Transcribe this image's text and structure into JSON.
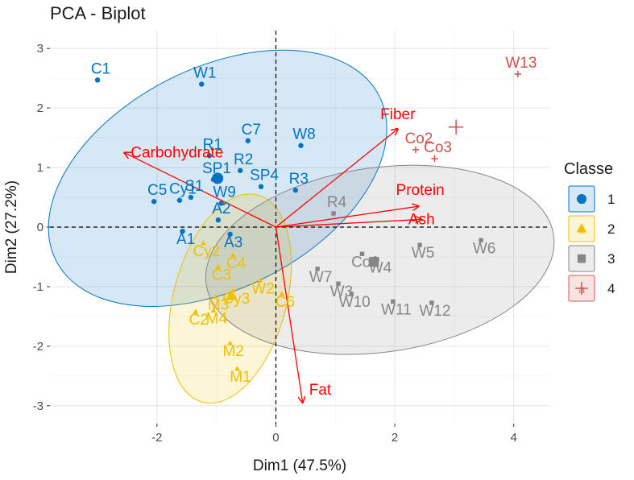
{
  "colors": {
    "1": "#0073c2",
    "2": "#efc000",
    "3": "#868686",
    "4": "#cd534c",
    "var": "#ff0000"
  },
  "chart_data": {
    "type": "scatter",
    "title": "PCA - Biplot",
    "xlabel": "Dim1 (47.5%)",
    "ylabel": "Dim2 (27.2%)",
    "xlim": [
      -3.8,
      4.6
    ],
    "ylim": [
      -3.3,
      3.3
    ],
    "xticks": [
      -2,
      0,
      2,
      4
    ],
    "yticks": [
      -3,
      -2,
      -1,
      0,
      1,
      2,
      3
    ],
    "legend": {
      "title": "Classe",
      "entries": [
        {
          "classe": "1",
          "label": "1"
        },
        {
          "classe": "2",
          "label": "2"
        },
        {
          "classe": "3",
          "label": "3"
        },
        {
          "classe": "4",
          "label": "4"
        }
      ]
    },
    "points": [
      {
        "name": "W1",
        "classe": "1",
        "x": -1.25,
        "y": 2.4
      },
      {
        "name": "C1",
        "classe": "1",
        "x": -3.0,
        "y": 2.47
      },
      {
        "name": "C7",
        "classe": "1",
        "x": -0.47,
        "y": 1.45
      },
      {
        "name": "R1",
        "classe": "1",
        "x": -1.12,
        "y": 1.2
      },
      {
        "name": "W8",
        "classe": "1",
        "x": 0.42,
        "y": 1.37
      },
      {
        "name": "R2",
        "classe": "1",
        "x": -0.6,
        "y": 0.95
      },
      {
        "name": "SP1",
        "classe": "1",
        "x": -1.05,
        "y": 0.8
      },
      {
        "name": "R3",
        "classe": "1",
        "x": 0.33,
        "y": 0.62
      },
      {
        "name": "Cy1",
        "classe": "1",
        "x": -1.62,
        "y": 0.45
      },
      {
        "name": "S1",
        "classe": "1",
        "x": -1.43,
        "y": 0.5
      },
      {
        "name": "W9",
        "classe": "1",
        "x": -0.92,
        "y": 0.4
      },
      {
        "name": "SP4",
        "classe": "1",
        "x": -0.25,
        "y": 0.68
      },
      {
        "name": "C5",
        "classe": "1",
        "x": -2.05,
        "y": 0.43
      },
      {
        "name": "A1",
        "classe": "1",
        "x": -1.57,
        "y": -0.07
      },
      {
        "name": "A2",
        "classe": "1",
        "x": -0.97,
        "y": 0.12
      },
      {
        "name": "A3",
        "classe": "1",
        "x": -0.77,
        "y": -0.12
      },
      {
        "name": "Cy2",
        "classe": "2",
        "x": -1.22,
        "y": -0.27
      },
      {
        "name": "C4",
        "classe": "2",
        "x": -0.72,
        "y": -0.47
      },
      {
        "name": "C3",
        "classe": "2",
        "x": -0.97,
        "y": -0.67
      },
      {
        "name": "W2",
        "classe": "2",
        "x": -0.27,
        "y": -0.9
      },
      {
        "name": "M3",
        "classe": "2",
        "x": -1.02,
        "y": -1.17
      },
      {
        "name": "Cy3",
        "classe": "2",
        "x": -0.72,
        "y": -1.07
      },
      {
        "name": "C2",
        "classe": "2",
        "x": -1.35,
        "y": -1.42
      },
      {
        "name": "M4",
        "classe": "2",
        "x": -1.05,
        "y": -1.4
      },
      {
        "name": "C6",
        "classe": "2",
        "x": 0.1,
        "y": -1.12
      },
      {
        "name": "M2",
        "classe": "2",
        "x": -0.77,
        "y": -1.95
      },
      {
        "name": "M1",
        "classe": "2",
        "x": -0.65,
        "y": -2.38
      },
      {
        "name": "R4",
        "classe": "3",
        "x": 0.97,
        "y": 0.23
      },
      {
        "name": "Co1",
        "classe": "3",
        "x": 1.45,
        "y": -0.45
      },
      {
        "name": "W7",
        "classe": "3",
        "x": 0.7,
        "y": -0.7
      },
      {
        "name": "W4",
        "classe": "3",
        "x": 1.7,
        "y": -0.55
      },
      {
        "name": "W3",
        "classe": "3",
        "x": 1.05,
        "y": -0.95
      },
      {
        "name": "W6",
        "classe": "3",
        "x": 3.45,
        "y": -0.22
      },
      {
        "name": "W5",
        "classe": "3",
        "x": 2.42,
        "y": -0.3
      },
      {
        "name": "W10",
        "classe": "3",
        "x": 1.27,
        "y": -1.12
      },
      {
        "name": "W12",
        "classe": "3",
        "x": 2.62,
        "y": -1.27
      },
      {
        "name": "W11",
        "classe": "3",
        "x": 1.97,
        "y": -1.25
      },
      {
        "name": "W13",
        "classe": "4",
        "x": 4.07,
        "y": 2.57
      },
      {
        "name": "Co2",
        "classe": "4",
        "x": 2.35,
        "y": 1.3
      },
      {
        "name": "Co3",
        "classe": "4",
        "x": 2.67,
        "y": 1.15
      }
    ],
    "centroids": [
      {
        "classe": "1",
        "x": -0.98,
        "y": 0.82
      },
      {
        "classe": "2",
        "x": -0.75,
        "y": -1.15
      },
      {
        "classe": "3",
        "x": 1.65,
        "y": -0.58
      },
      {
        "classe": "4",
        "x": 3.03,
        "y": 1.68
      }
    ],
    "ellipses": [
      {
        "classe": "1",
        "cx": -0.98,
        "cy": 0.82,
        "rx": 3.05,
        "ry": 1.85,
        "angle_deg": -27
      },
      {
        "classe": "2",
        "cx": -0.77,
        "cy": -1.2,
        "rx": 0.95,
        "ry": 1.8,
        "angle_deg": 15
      },
      {
        "classe": "3",
        "cx": 1.75,
        "cy": -0.55,
        "rx": 2.95,
        "ry": 1.55,
        "angle_deg": -8
      }
    ],
    "variables": [
      {
        "name": "Carbohydrate",
        "x": -2.55,
        "y": 1.25
      },
      {
        "name": "Fiber",
        "x": 2.05,
        "y": 1.65
      },
      {
        "name": "Protein",
        "x": 2.4,
        "y": 0.35
      },
      {
        "name": "Ash",
        "x": 2.45,
        "y": 0.13
      },
      {
        "name": "Fat",
        "x": 0.45,
        "y": -2.95
      }
    ]
  }
}
